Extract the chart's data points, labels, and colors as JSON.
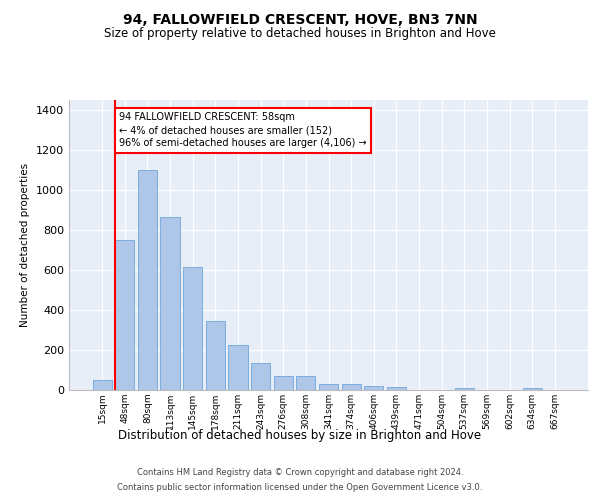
{
  "title": "94, FALLOWFIELD CRESCENT, HOVE, BN3 7NN",
  "subtitle": "Size of property relative to detached houses in Brighton and Hove",
  "xlabel": "Distribution of detached houses by size in Brighton and Hove",
  "ylabel": "Number of detached properties",
  "footnote1": "Contains HM Land Registry data © Crown copyright and database right 2024.",
  "footnote2": "Contains public sector information licensed under the Open Government Licence v3.0.",
  "bar_labels": [
    "15sqm",
    "48sqm",
    "80sqm",
    "113sqm",
    "145sqm",
    "178sqm",
    "211sqm",
    "243sqm",
    "276sqm",
    "308sqm",
    "341sqm",
    "374sqm",
    "406sqm",
    "439sqm",
    "471sqm",
    "504sqm",
    "537sqm",
    "569sqm",
    "602sqm",
    "634sqm",
    "667sqm"
  ],
  "bar_values": [
    50,
    750,
    1100,
    865,
    615,
    345,
    225,
    135,
    68,
    68,
    32,
    30,
    22,
    15,
    0,
    0,
    12,
    0,
    0,
    12,
    0
  ],
  "bar_color": "#aec6e8",
  "bar_edge_color": "#5b9bd5",
  "background_color": "#e8eef8",
  "grid_color": "#ffffff",
  "annotation_line1": "94 FALLOWFIELD CRESCENT: 58sqm",
  "annotation_line2": "← 4% of detached houses are smaller (152)",
  "annotation_line3": "96% of semi-detached houses are larger (4,106) →",
  "annotation_box_edgecolor": "red",
  "red_line_bar_index": 1,
  "ylim_max": 1450,
  "yticks": [
    0,
    200,
    400,
    600,
    800,
    1000,
    1200,
    1400
  ]
}
